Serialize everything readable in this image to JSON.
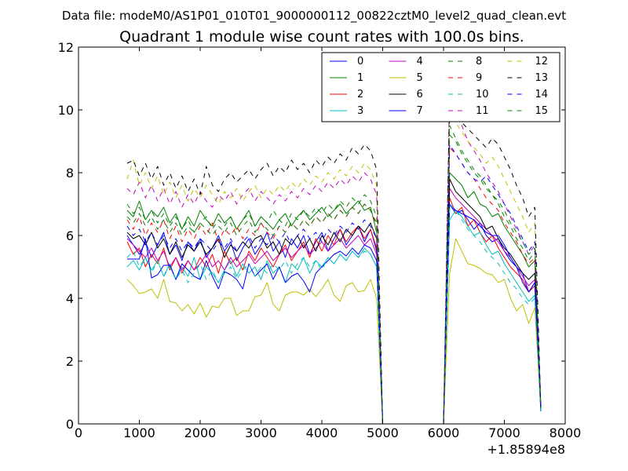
{
  "figure": {
    "suptitle": "Data file: modeM0/AS1P01_010T01_9000000112_00822cztM0_level2_quad_clean.evt"
  },
  "chart_data": {
    "type": "line",
    "title": "Quadrant 1 module wise count rates with 100.0s bins.",
    "xlabel": "",
    "ylabel": "",
    "xlim": [
      0,
      8000
    ],
    "ylim": [
      0,
      12
    ],
    "x_offset_label": "+1.85894e8",
    "xticks": [
      0,
      1000,
      2000,
      3000,
      4000,
      5000,
      6000,
      7000,
      8000
    ],
    "yticks": [
      0,
      2,
      4,
      6,
      8,
      10,
      12
    ],
    "grid": false,
    "legend_placement": "top-right",
    "legend_columns": 4,
    "x": [
      800,
      900,
      1000,
      1100,
      1200,
      1300,
      1400,
      1500,
      1600,
      1700,
      1800,
      1900,
      2000,
      2100,
      2200,
      2300,
      2400,
      2500,
      2600,
      2700,
      2800,
      2900,
      3000,
      3100,
      3200,
      3300,
      3400,
      3500,
      3600,
      3700,
      3800,
      3900,
      4000,
      4100,
      4200,
      4300,
      4400,
      4500,
      4600,
      4700,
      4800,
      4900,
      5000,
      6000,
      6100,
      6200,
      6300,
      6400,
      6500,
      6600,
      6700,
      6800,
      6900,
      7000,
      7100,
      7200,
      7300,
      7400,
      7500,
      7600
    ],
    "series": [
      {
        "name": "0",
        "color": "#0000ff",
        "dash": "solid",
        "values": [
          6.0,
          5.7,
          5.4,
          5.8,
          5.3,
          5.7,
          6.1,
          5.4,
          5.7,
          5.2,
          5.8,
          5.5,
          5.9,
          5.3,
          5.6,
          6.0,
          5.5,
          5.8,
          5.2,
          5.6,
          5.9,
          5.4,
          5.7,
          6.1,
          5.5,
          5.8,
          5.3,
          5.9,
          5.6,
          6.0,
          5.4,
          5.8,
          6.1,
          5.5,
          5.9,
          6.2,
          5.7,
          6.0,
          6.3,
          5.8,
          6.2,
          5.5,
          0.0,
          0.0,
          7.0,
          6.7,
          6.8,
          6.5,
          6.2,
          6.4,
          6.0,
          5.8,
          5.9,
          5.5,
          5.2,
          5.0,
          4.8,
          4.2,
          4.5,
          0.4
        ]
      },
      {
        "name": "1",
        "color": "#008000",
        "dash": "solid",
        "values": [
          6.8,
          6.6,
          7.1,
          6.5,
          6.8,
          6.6,
          6.9,
          6.4,
          6.7,
          6.2,
          6.6,
          6.3,
          6.8,
          6.5,
          6.3,
          6.7,
          6.4,
          6.6,
          6.2,
          6.5,
          6.8,
          6.3,
          6.6,
          6.4,
          6.2,
          6.5,
          6.7,
          6.3,
          6.6,
          6.8,
          6.5,
          6.7,
          6.9,
          6.6,
          6.8,
          7.0,
          6.7,
          6.9,
          7.1,
          6.8,
          6.9,
          6.1,
          0.0,
          0.0,
          8.0,
          7.8,
          7.6,
          7.2,
          7.4,
          7.0,
          6.9,
          6.6,
          6.7,
          6.3,
          6.0,
          5.7,
          5.4,
          5.0,
          5.2,
          0.5
        ]
      },
      {
        "name": "2",
        "color": "#ff0000",
        "dash": "solid",
        "values": [
          5.8,
          5.4,
          5.6,
          5.0,
          5.4,
          5.1,
          5.6,
          4.9,
          5.3,
          4.8,
          5.2,
          4.9,
          5.3,
          5.0,
          5.4,
          4.8,
          5.5,
          5.1,
          5.3,
          4.9,
          5.5,
          5.2,
          5.6,
          5.3,
          5.0,
          5.4,
          5.7,
          5.2,
          5.5,
          5.8,
          5.3,
          5.9,
          5.5,
          6.0,
          5.7,
          6.2,
          5.8,
          6.1,
          6.3,
          5.9,
          6.2,
          5.6,
          0.0,
          0.0,
          7.2,
          6.7,
          6.9,
          6.3,
          6.5,
          6.1,
          5.8,
          6.0,
          5.6,
          5.3,
          5.0,
          4.8,
          4.6,
          4.2,
          4.4,
          0.4
        ]
      },
      {
        "name": "3",
        "color": "#00bfbf",
        "dash": "solid",
        "values": [
          5.0,
          5.2,
          4.9,
          5.3,
          4.9,
          5.2,
          4.7,
          5.1,
          4.6,
          5.0,
          4.7,
          5.3,
          4.6,
          5.0,
          4.8,
          4.5,
          4.9,
          5.2,
          4.7,
          5.1,
          4.8,
          5.0,
          4.6,
          5.2,
          4.8,
          5.0,
          4.5,
          5.1,
          4.9,
          5.3,
          4.8,
          5.2,
          5.0,
          5.3,
          5.1,
          5.4,
          5.2,
          5.5,
          5.3,
          5.6,
          5.4,
          5.0,
          0.0,
          0.0,
          6.5,
          6.8,
          6.6,
          6.3,
          6.0,
          6.1,
          5.7,
          5.4,
          5.5,
          5.1,
          4.8,
          4.5,
          4.2,
          3.9,
          4.1,
          0.4
        ]
      },
      {
        "name": "4",
        "color": "#bf00bf",
        "dash": "solid",
        "values": [
          5.9,
          5.7,
          5.5,
          5.3,
          5.6,
          5.2,
          5.5,
          5.0,
          5.3,
          4.9,
          5.2,
          4.9,
          5.1,
          5.4,
          5.0,
          5.2,
          4.9,
          5.3,
          5.0,
          5.2,
          5.4,
          5.1,
          5.3,
          5.5,
          5.2,
          5.4,
          5.6,
          5.3,
          5.5,
          5.7,
          5.4,
          5.6,
          5.8,
          5.5,
          5.7,
          5.9,
          5.6,
          5.8,
          6.0,
          5.7,
          5.9,
          5.4,
          0.0,
          0.0,
          7.5,
          7.2,
          7.0,
          6.8,
          6.6,
          6.4,
          6.2,
          6.0,
          5.8,
          5.5,
          5.3,
          5.0,
          4.7,
          4.4,
          4.6,
          0.4
        ]
      },
      {
        "name": "5",
        "color": "#bfbf00",
        "dash": "solid",
        "values": [
          4.6,
          4.4,
          4.15,
          4.2,
          4.3,
          4.0,
          4.6,
          3.9,
          3.85,
          3.6,
          3.8,
          3.5,
          3.85,
          3.4,
          3.75,
          3.7,
          4.0,
          4.0,
          3.45,
          3.6,
          3.6,
          4.05,
          4.1,
          4.5,
          3.8,
          3.6,
          4.1,
          4.2,
          4.2,
          4.1,
          4.3,
          4.05,
          4.3,
          4.6,
          4.1,
          3.9,
          4.4,
          4.5,
          4.2,
          4.25,
          4.6,
          4.0,
          0.0,
          0.0,
          4.8,
          5.9,
          5.5,
          5.1,
          5.05,
          4.95,
          4.8,
          4.75,
          4.5,
          4.6,
          4.0,
          3.6,
          3.8,
          3.2,
          3.7,
          0.4
        ]
      },
      {
        "name": "6",
        "color": "#000000",
        "dash": "solid",
        "values": [
          6.1,
          5.9,
          6.0,
          5.7,
          6.1,
          5.6,
          5.9,
          5.4,
          5.8,
          5.3,
          5.7,
          5.5,
          5.8,
          5.4,
          5.6,
          5.9,
          5.3,
          5.7,
          5.5,
          5.8,
          5.6,
          5.9,
          6.0,
          5.6,
          5.8,
          5.4,
          5.9,
          5.7,
          6.0,
          5.6,
          5.9,
          5.5,
          6.0,
          5.7,
          6.1,
          5.8,
          6.2,
          6.0,
          6.3,
          6.1,
          6.4,
          5.9,
          0.0,
          0.0,
          7.8,
          7.4,
          7.2,
          7.0,
          6.8,
          6.6,
          6.2,
          6.3,
          5.9,
          5.6,
          5.4,
          5.1,
          4.8,
          4.6,
          4.8,
          0.4
        ]
      },
      {
        "name": "7",
        "color": "#0000ff",
        "dash": "solid",
        "values": [
          5.25,
          5.25,
          5.25,
          5.9,
          4.65,
          4.75,
          5.05,
          5.05,
          4.6,
          5.1,
          4.9,
          4.7,
          4.6,
          5.2,
          4.7,
          4.3,
          4.85,
          4.75,
          4.6,
          4.3,
          5.1,
          4.7,
          4.9,
          5.1,
          4.6,
          5.0,
          4.5,
          4.7,
          4.8,
          4.55,
          4.2,
          4.8,
          5.0,
          5.2,
          5.4,
          5.5,
          5.35,
          5.6,
          5.4,
          5.7,
          5.6,
          5.2,
          0.0,
          0.0,
          7.0,
          6.8,
          6.7,
          6.6,
          6.5,
          6.3,
          6.1,
          6.0,
          6.0,
          5.7,
          5.3,
          5.0,
          4.5,
          4.2,
          4.5,
          0.4
        ]
      },
      {
        "name": "8",
        "color": "#008000",
        "dash": "dashed",
        "values": [
          7.0,
          6.7,
          6.9,
          6.5,
          6.8,
          6.4,
          6.7,
          6.3,
          6.6,
          6.2,
          6.5,
          6.1,
          6.4,
          6.6,
          6.2,
          6.5,
          6.3,
          6.6,
          6.2,
          6.5,
          6.7,
          6.3,
          6.6,
          6.4,
          6.8,
          6.5,
          6.3,
          6.7,
          6.5,
          6.8,
          6.6,
          6.9,
          6.7,
          7.0,
          6.8,
          7.1,
          6.9,
          7.2,
          7.0,
          7.3,
          7.1,
          6.6,
          0.0,
          0.0,
          9.2,
          9.0,
          8.6,
          8.3,
          8.0,
          7.8,
          7.5,
          7.3,
          7.0,
          6.6,
          6.3,
          5.9,
          5.6,
          5.2,
          5.5,
          0.5
        ]
      },
      {
        "name": "9",
        "color": "#ff0000",
        "dash": "dashed",
        "values": [
          6.5,
          6.2,
          6.6,
          6.0,
          6.4,
          6.1,
          6.5,
          5.9,
          6.3,
          5.8,
          6.2,
          5.9,
          6.3,
          6.0,
          6.4,
          5.8,
          6.2,
          6.0,
          6.3,
          5.9,
          6.2,
          6.0,
          6.4,
          6.1,
          5.9,
          6.3,
          6.1,
          6.4,
          6.2,
          6.5,
          6.3,
          6.6,
          6.4,
          6.7,
          6.5,
          6.8,
          6.6,
          6.9,
          6.7,
          7.0,
          6.8,
          6.3,
          0.0,
          0.0,
          8.8,
          8.6,
          8.3,
          8.0,
          7.8,
          7.5,
          7.2,
          7.0,
          6.8,
          6.4,
          6.1,
          5.8,
          5.4,
          5.1,
          5.3,
          0.5
        ]
      },
      {
        "name": "10",
        "color": "#00bfbf",
        "dash": "dashed",
        "values": [
          5.3,
          5.5,
          5.0,
          5.3,
          4.8,
          5.2,
          4.7,
          5.0,
          4.6,
          4.9,
          4.5,
          4.8,
          5.1,
          4.6,
          4.9,
          4.5,
          4.8,
          5.0,
          4.6,
          4.9,
          5.1,
          4.7,
          5.0,
          4.8,
          5.1,
          4.9,
          5.2,
          4.8,
          5.1,
          5.3,
          5.0,
          5.2,
          4.9,
          5.3,
          5.1,
          5.4,
          5.2,
          5.5,
          5.3,
          5.5,
          5.4,
          5.0,
          0.0,
          0.0,
          7.0,
          6.8,
          6.5,
          6.2,
          6.0,
          5.8,
          5.5,
          5.3,
          5.1,
          4.8,
          4.5,
          4.3,
          4.0,
          3.8,
          4.0,
          0.4
        ]
      },
      {
        "name": "11",
        "color": "#bf00bf",
        "dash": "dashed",
        "values": [
          7.5,
          7.3,
          7.7,
          7.2,
          7.6,
          7.1,
          7.5,
          7.0,
          7.4,
          6.9,
          7.3,
          7.0,
          7.4,
          7.1,
          6.9,
          7.3,
          7.1,
          7.4,
          7.0,
          7.3,
          7.5,
          7.1,
          7.4,
          7.2,
          7.0,
          7.3,
          7.1,
          7.4,
          7.2,
          7.5,
          7.3,
          7.6,
          7.4,
          7.7,
          7.5,
          7.8,
          7.6,
          7.9,
          7.7,
          8.0,
          7.8,
          7.3,
          0.0,
          0.0,
          10.8,
          10.2,
          9.5,
          9.0,
          8.7,
          8.4,
          8.0,
          7.7,
          7.4,
          7.0,
          6.6,
          6.2,
          5.8,
          5.4,
          5.7,
          0.5
        ]
      },
      {
        "name": "12",
        "color": "#bfbf00",
        "dash": "dashed",
        "values": [
          7.8,
          8.4,
          7.6,
          8.0,
          7.5,
          7.9,
          7.3,
          7.7,
          7.2,
          7.6,
          7.1,
          7.5,
          7.2,
          7.6,
          7.3,
          7.0,
          7.4,
          7.2,
          7.5,
          7.1,
          7.4,
          7.6,
          7.2,
          7.5,
          7.3,
          7.6,
          7.4,
          7.7,
          7.5,
          7.8,
          7.6,
          7.9,
          7.7,
          8.0,
          7.8,
          8.1,
          7.9,
          8.2,
          8.0,
          8.3,
          8.1,
          7.6,
          0.0,
          0.0,
          9.8,
          9.6,
          9.3,
          9.0,
          8.8,
          8.6,
          8.3,
          8.5,
          8.2,
          7.8,
          7.4,
          7.0,
          6.6,
          6.1,
          6.4,
          0.5
        ]
      },
      {
        "name": "13",
        "color": "#000000",
        "dash": "dashed",
        "values": [
          8.3,
          8.4,
          7.9,
          8.3,
          7.8,
          8.2,
          7.6,
          8.0,
          7.5,
          7.9,
          7.4,
          7.8,
          7.3,
          8.2,
          7.6,
          7.4,
          7.8,
          8.0,
          7.7,
          7.9,
          8.1,
          7.8,
          8.1,
          8.3,
          7.9,
          8.2,
          8.0,
          8.4,
          8.1,
          8.3,
          8.0,
          8.4,
          8.2,
          8.5,
          8.3,
          8.6,
          8.4,
          8.8,
          8.6,
          8.9,
          8.7,
          8.1,
          0.0,
          0.0,
          10.4,
          10.0,
          9.6,
          9.4,
          9.2,
          9.0,
          8.8,
          9.1,
          8.9,
          8.5,
          8.1,
          7.6,
          7.2,
          6.6,
          6.9,
          0.5
        ]
      },
      {
        "name": "14",
        "color": "#0000ff",
        "dash": "dashed",
        "values": [
          6.3,
          6.0,
          6.2,
          5.8,
          6.1,
          5.7,
          6.0,
          5.6,
          5.9,
          5.5,
          5.8,
          5.6,
          5.9,
          5.7,
          5.5,
          5.8,
          5.6,
          5.9,
          5.5,
          5.8,
          6.0,
          5.6,
          5.9,
          5.7,
          6.0,
          5.8,
          6.1,
          5.7,
          6.0,
          6.2,
          5.9,
          6.1,
          5.8,
          6.2,
          6.0,
          6.3,
          6.1,
          6.4,
          6.2,
          6.5,
          6.3,
          5.9,
          0.0,
          0.0,
          8.9,
          8.6,
          8.3,
          8.0,
          7.8,
          7.7,
          7.9,
          7.6,
          7.3,
          7.0,
          6.7,
          6.3,
          5.9,
          5.5,
          5.8,
          0.5
        ]
      },
      {
        "name": "15",
        "color": "#008000",
        "dash": "dashed",
        "values": [
          6.6,
          6.4,
          6.7,
          6.3,
          6.6,
          6.2,
          6.5,
          6.1,
          6.4,
          6.0,
          6.3,
          6.1,
          6.4,
          6.2,
          6.0,
          6.3,
          6.1,
          6.4,
          6.0,
          6.3,
          6.5,
          6.1,
          6.4,
          6.2,
          6.0,
          6.3,
          6.1,
          6.4,
          6.2,
          6.5,
          6.3,
          6.6,
          6.4,
          6.7,
          6.5,
          6.8,
          6.6,
          6.9,
          6.7,
          7.0,
          6.8,
          6.4,
          0.0,
          0.0,
          9.5,
          9.1,
          8.7,
          8.4,
          8.1,
          7.9,
          7.6,
          7.3,
          7.1,
          6.8,
          6.4,
          6.1,
          5.8,
          5.4,
          5.6,
          0.5
        ]
      }
    ]
  }
}
